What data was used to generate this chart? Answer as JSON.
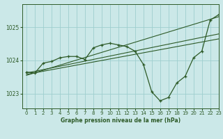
{
  "title": "Graphe pression niveau de la mer (hPa)",
  "bg_color": "#cbe8e8",
  "grid_color": "#9ecece",
  "line_color": "#2d5a27",
  "xlim": [
    -0.5,
    23
  ],
  "ylim": [
    1022.55,
    1025.7
  ],
  "xticks": [
    0,
    1,
    2,
    3,
    4,
    5,
    6,
    7,
    8,
    9,
    10,
    11,
    12,
    13,
    14,
    15,
    16,
    17,
    18,
    19,
    20,
    21,
    22,
    23
  ],
  "yticks": [
    1023,
    1024,
    1025
  ],
  "series1_x": [
    0,
    1,
    2,
    3,
    4,
    5,
    6,
    7,
    8,
    9,
    10,
    11,
    12,
    13,
    14,
    15,
    16,
    17,
    18,
    19,
    20,
    21,
    22,
    23
  ],
  "series1_y": [
    1023.65,
    1023.62,
    1023.92,
    1023.97,
    1024.08,
    1024.12,
    1024.12,
    1024.03,
    1024.38,
    1024.47,
    1024.52,
    1024.47,
    1024.42,
    1024.28,
    1023.88,
    1023.05,
    1022.78,
    1022.88,
    1023.32,
    1023.52,
    1024.08,
    1024.28,
    1025.22,
    1025.38
  ],
  "series2_x": [
    0,
    23
  ],
  "series2_y": [
    1023.62,
    1024.8
  ],
  "series3_x": [
    0,
    23
  ],
  "series3_y": [
    1023.58,
    1024.65
  ],
  "series4_x": [
    0,
    23
  ],
  "series4_y": [
    1023.55,
    1025.32
  ],
  "xlabel_fontsize": 5.5,
  "tick_fontsize": 5,
  "ytick_fontsize": 5.5
}
